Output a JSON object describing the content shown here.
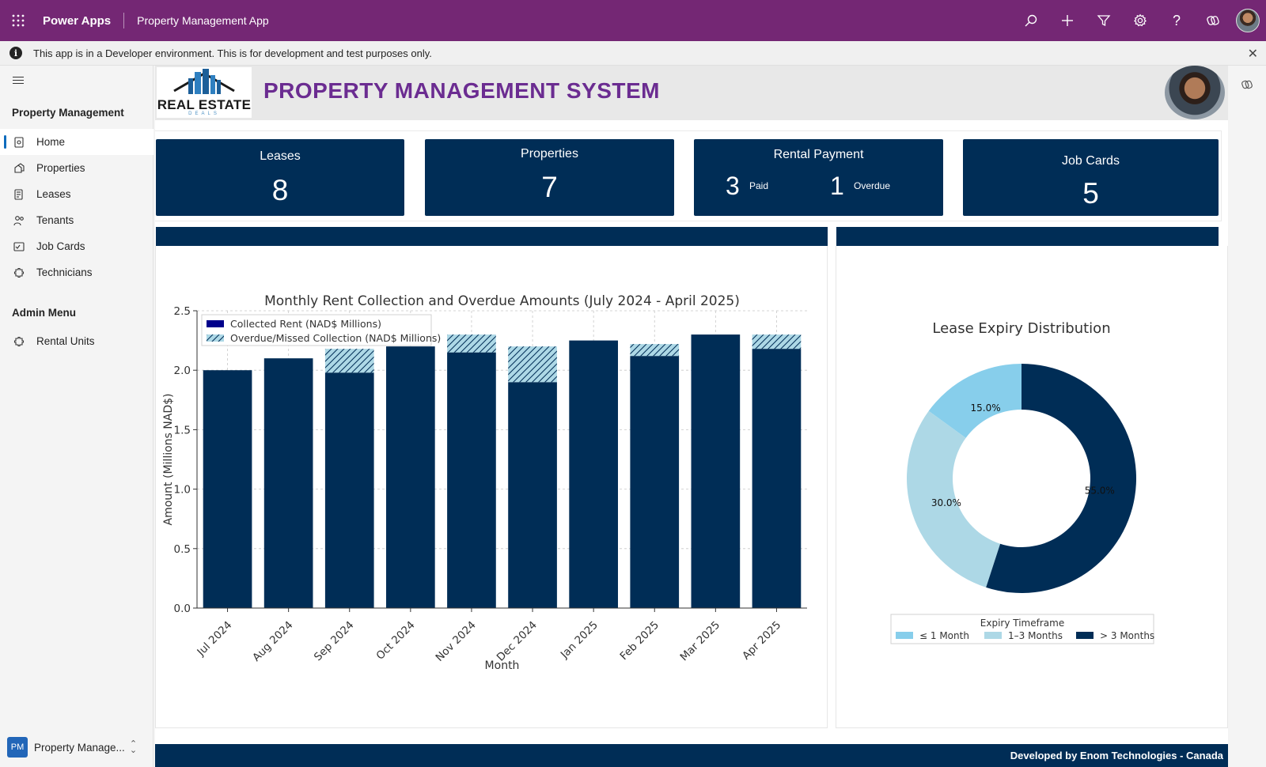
{
  "topbar": {
    "brand": "Power Apps",
    "app_name": "Property Management App",
    "icons": [
      "search-icon",
      "add-icon",
      "filter-icon",
      "settings-icon",
      "help-icon",
      "copilot-icon"
    ]
  },
  "banner": {
    "message": "This app is in a Developer environment. This is for development and test purposes only.",
    "close": "✕"
  },
  "sidebar": {
    "section1": "Property Management",
    "items": [
      {
        "label": "Home",
        "icon": "home-icon"
      },
      {
        "label": "Properties",
        "icon": "properties-icon"
      },
      {
        "label": "Leases",
        "icon": "leases-icon"
      },
      {
        "label": "Tenants",
        "icon": "tenants-icon"
      },
      {
        "label": "Job Cards",
        "icon": "job-cards-icon"
      },
      {
        "label": "Technicians",
        "icon": "technicians-icon"
      }
    ],
    "section2": "Admin Menu",
    "admin_items": [
      {
        "label": "Rental Units",
        "icon": "rental-units-icon"
      }
    ],
    "area": {
      "badge": "PM",
      "label": "Property Manage..."
    }
  },
  "header": {
    "logo_line1": "REAL ESTATE",
    "logo_line2": "DEALS",
    "title": "PROPERTY MANAGEMENT SYSTEM"
  },
  "kpis": {
    "leases": {
      "title": "Leases",
      "value": "8"
    },
    "properties": {
      "title": "Properties",
      "value": "7"
    },
    "rental_payment": {
      "title": "Rental Payment",
      "paid_value": "3",
      "paid_label": "Paid",
      "overdue_value": "1",
      "overdue_label": "Overdue"
    },
    "job_cards": {
      "title": "Job Cards",
      "value": "5"
    }
  },
  "colors": {
    "navy": "#002d56",
    "purple": "#742774",
    "title_purple": "#6b2c91",
    "overdue_fill": "#add8e6",
    "sky": "#87ceeb",
    "light_blue": "#add8e6",
    "legend_collected": "#00008b"
  },
  "chart_data": [
    {
      "type": "bar",
      "stacked": true,
      "title": "Monthly Rent Collection and Overdue Amounts (July 2024 - April 2025)",
      "xlabel": "Month",
      "ylabel": "Amount (Millions NAD$)",
      "ylim": [
        0,
        2.5
      ],
      "yticks": [
        "0.0",
        "0.5",
        "1.0",
        "1.5",
        "2.0",
        "2.5"
      ],
      "grid": true,
      "legend_position": "top-left",
      "categories": [
        "Jul 2024",
        "Aug 2024",
        "Sep 2024",
        "Oct 2024",
        "Nov 2024",
        "Dec 2024",
        "Jan 2025",
        "Feb 2025",
        "Mar 2025",
        "Apr 2025"
      ],
      "series": [
        {
          "name": "Collected Rent (NAD$ Millions)",
          "values": [
            2.0,
            2.1,
            1.98,
            2.2,
            2.15,
            1.9,
            2.25,
            2.12,
            2.3,
            2.18
          ]
        },
        {
          "name": "Overdue/Missed Collection (NAD$ Millions)",
          "values": [
            0.0,
            0.0,
            0.2,
            0.0,
            0.15,
            0.3,
            0.0,
            0.1,
            0.0,
            0.12
          ]
        }
      ]
    },
    {
      "type": "pie",
      "donut": true,
      "title": "Lease Expiry Distribution",
      "legend_title": "Expiry Timeframe",
      "legend_position": "bottom",
      "labels": [
        "≤ 1 Month",
        "1–3 Months",
        "> 3 Months"
      ],
      "values": [
        15.0,
        30.0,
        55.0
      ],
      "value_labels": [
        "15.0%",
        "30.0%",
        "55.0%"
      ]
    }
  ],
  "footer": {
    "text": "Developed by Enom Technologies - Canada"
  }
}
